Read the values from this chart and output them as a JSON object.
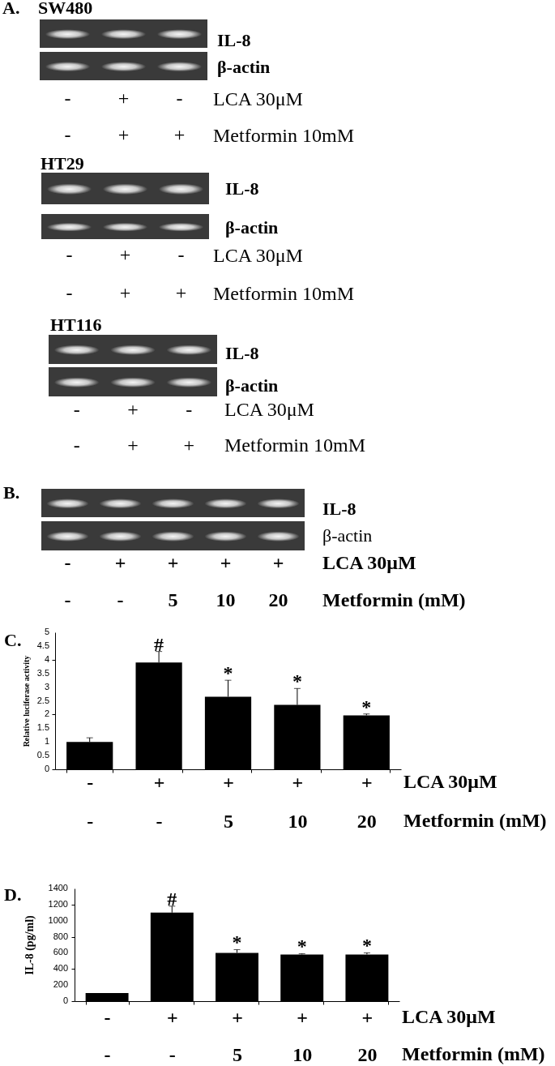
{
  "chart_data": [
    {
      "type": "other",
      "title": "A.",
      "subtitle": "SW480",
      "categories": [
        "-\n-",
        "+\n+",
        "-\n+"
      ],
      "annotations": [
        "IL-8",
        "β-actin",
        "LCA 30μM",
        "Metformin 10mM"
      ]
    },
    {
      "type": "other",
      "subtitle": "HT29",
      "categories": [
        "-\n-",
        "+\n+",
        "-\n+"
      ],
      "annotations": [
        "IL-8",
        "β-actin",
        "LCA 30μM",
        "Metformin 10mM"
      ]
    },
    {
      "type": "other",
      "subtitle": "HT116",
      "categories": [
        "-\n-",
        "+\n+",
        "-\n+"
      ],
      "annotations": [
        "IL-8",
        "β-actin",
        "LCA 30μM",
        "Metformin 10mM"
      ]
    },
    {
      "type": "other",
      "title": "B.",
      "categories": [
        "-\n-",
        "+\n-",
        "+\n5",
        "+\n10",
        "+\n20"
      ],
      "annotations": [
        "IL-8",
        "β-actin",
        "LCA 30μM",
        "Metformin (mM)"
      ]
    },
    {
      "type": "bar",
      "title": "C.",
      "ylabel": "Relative luciferase activity",
      "categories": [
        "-\n-",
        "+\n-",
        "+\n5",
        "+\n10",
        "+\n20"
      ],
      "values": [
        1,
        3.9,
        2.65,
        2.35,
        1.97
      ],
      "errors": [
        [
          1,
          1.15
        ],
        [
          3.9,
          4.3
        ],
        [
          2.65,
          3.25
        ],
        [
          2.35,
          2.95
        ],
        [
          1.97,
          2.02
        ]
      ],
      "color": "#000000",
      "ylim": [
        0,
        5
      ],
      "yticks": [
        0,
        0.5,
        1,
        1.5,
        2,
        2.5,
        3,
        3.5,
        4,
        4.5,
        5
      ],
      "annotations": [
        {
          "text": "#",
          "x": "+\n-",
          "y": 4.3
        },
        {
          "text": "*",
          "x": "+\n5",
          "y": 3.25
        },
        {
          "text": "*",
          "x": "+\n10",
          "y": 2.95
        },
        {
          "text": "*",
          "x": "+\n20",
          "y": 2.02
        },
        "LCA 30μM",
        "Metformin (mM)"
      ]
    },
    {
      "type": "bar",
      "title": "D.",
      "ylabel": "IL-8 (pg/ml)",
      "categories": [
        "-\n-",
        "+\n-",
        "+\n5",
        "+\n10",
        "+\n20"
      ],
      "values": [
        100,
        1100,
        600,
        580,
        580
      ],
      "errors": [
        null,
        [
          1100,
          1180
        ],
        [
          600,
          640
        ],
        [
          580,
          590
        ],
        [
          580,
          600
        ]
      ],
      "color": "#000000",
      "ylim": [
        0,
        1400
      ],
      "yticks": [
        0,
        200,
        400,
        600,
        800,
        1000,
        1200,
        1400
      ],
      "annotations": [
        {
          "text": "#",
          "x": "+\n-",
          "y": 1180
        },
        {
          "text": "*",
          "x": "+\n5",
          "y": 640
        },
        {
          "text": "*",
          "x": "+\n10",
          "y": 590
        },
        {
          "text": "*",
          "x": "+\n20",
          "y": 600
        },
        "LCA 30μM",
        "Metformin (mM)"
      ]
    }
  ]
}
